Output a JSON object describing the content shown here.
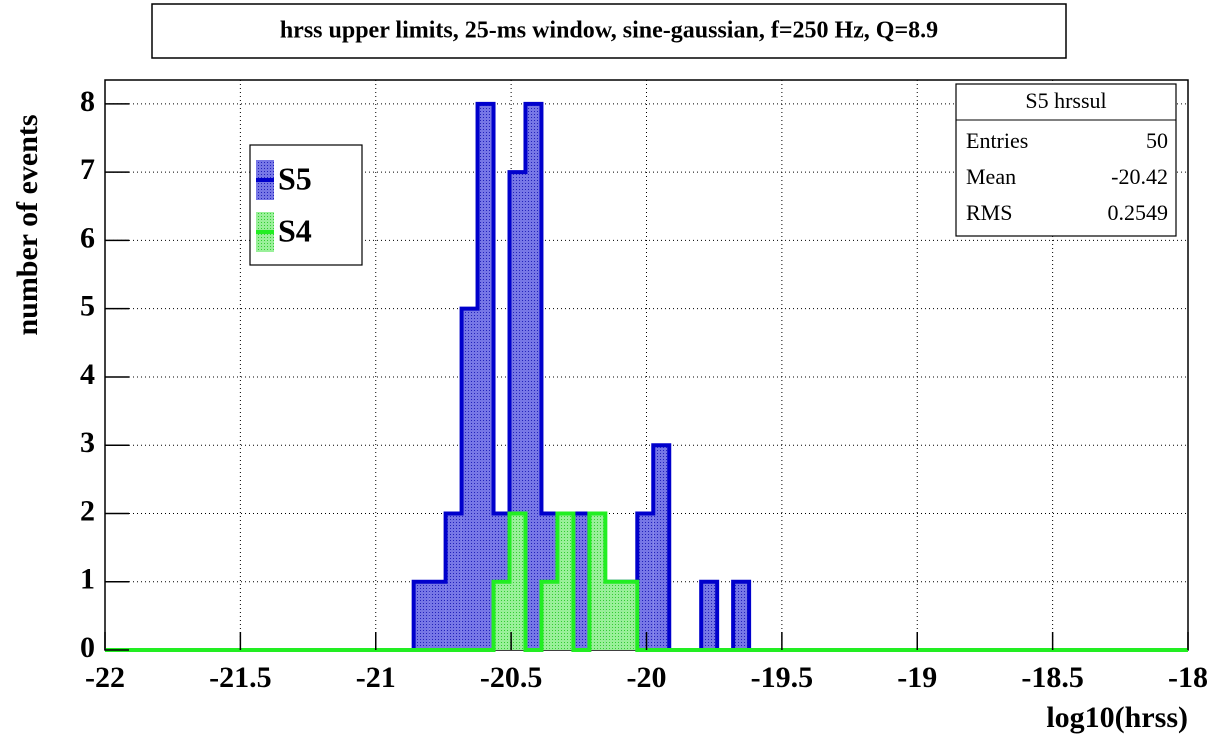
{
  "chart_data": {
    "type": "histogram",
    "title": "hrss upper limits, 25-ms window, sine-gaussian, f=250 Hz, Q=8.9",
    "x_label": "log10(hrss)",
    "y_label": "number of events",
    "bins": [
      -20.86,
      -20.801,
      -20.742,
      -20.683,
      -20.624,
      -20.565,
      -20.506,
      -20.447,
      -20.388,
      -20.329,
      -20.27,
      -20.211,
      -20.152,
      -20.093,
      -20.034,
      -19.975,
      -19.916,
      -19.857,
      -19.798,
      -19.739,
      -19.68,
      -19.621,
      -19.562
    ],
    "series": [
      {
        "name": "S5",
        "color": "#0000cc",
        "fill": "#5555dd",
        "values": [
          1,
          1,
          2,
          5,
          8,
          2,
          7,
          8,
          2,
          2,
          2,
          1,
          1,
          1,
          2,
          3,
          0,
          0,
          1,
          0,
          1,
          0
        ]
      },
      {
        "name": "S4",
        "color": "#22ee22",
        "fill": "#88ee88",
        "values": [
          0,
          0,
          0,
          0,
          0,
          1,
          2,
          0,
          1,
          2,
          0,
          2,
          1,
          1,
          0,
          0,
          0,
          0,
          0,
          0,
          0,
          0
        ]
      }
    ],
    "xlim": [
      -22,
      -18
    ],
    "ylim": [
      0,
      8.35
    ],
    "xticks": [
      -22,
      -21.5,
      -21,
      -20.5,
      -20,
      -19.5,
      -19,
      -18.5,
      -18
    ],
    "yticks": [
      0,
      1,
      2,
      3,
      4,
      5,
      6,
      7,
      8
    ],
    "grid": true,
    "stats": {
      "title": "S5 hrssul",
      "rows": [
        [
          "Entries",
          50
        ],
        [
          "Mean",
          -20.42
        ],
        [
          "RMS",
          0.2549
        ]
      ]
    }
  }
}
